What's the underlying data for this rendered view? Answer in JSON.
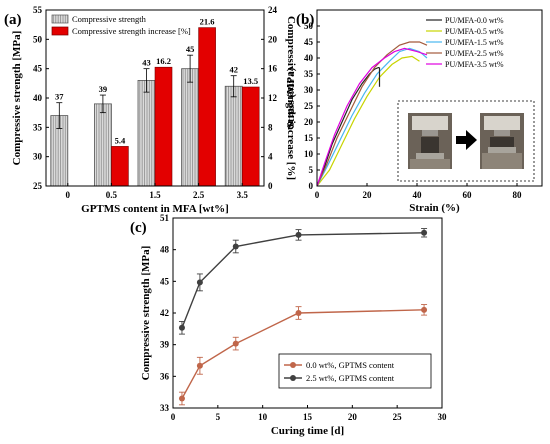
{
  "panels": {
    "a": "(a)",
    "b": "(b)",
    "c": "(c)"
  },
  "chart_data": [
    {
      "type": "bar",
      "panel": "a",
      "categories": [
        "0",
        "0.5",
        "1.5",
        "2.5",
        "3.5"
      ],
      "xlabel": "GPTMS content in MFA [wt%]",
      "ylabel": "Compressive strength [MPa]",
      "ylabel_right": "Compressive strength increase [%]",
      "ylim": [
        25,
        55
      ],
      "yticks": [
        25,
        30,
        35,
        40,
        45,
        50,
        55
      ],
      "ylim_right": [
        0,
        24
      ],
      "yticks_right": [
        0,
        4,
        8,
        12,
        16,
        20,
        24
      ],
      "legend_position": "top-left",
      "series": [
        {
          "name": "Compressive strength",
          "axis": "left",
          "color": "#c0c0c0",
          "values": [
            37,
            39,
            43,
            45,
            42
          ],
          "errors": [
            2.2,
            1.5,
            2.0,
            2.3,
            1.8
          ],
          "labels": [
            "37",
            "39",
            "43",
            "45",
            "42"
          ]
        },
        {
          "name": "Compressive strength increase [%]",
          "axis": "right",
          "color": "#e30000",
          "values": [
            0,
            5.4,
            16.2,
            21.6,
            13.5
          ],
          "labels": [
            "",
            "5.4",
            "16.2",
            "21.6",
            "13.5"
          ]
        }
      ]
    },
    {
      "type": "line",
      "panel": "b",
      "xlabel": "Strain (%)",
      "ylabel": "Stress (MPa)",
      "xlim": [
        0,
        90
      ],
      "xticks": [
        0,
        20,
        40,
        60,
        80
      ],
      "ylim": [
        0,
        55
      ],
      "yticks": [
        0,
        5,
        10,
        15,
        20,
        25,
        30,
        35,
        40,
        45,
        50
      ],
      "legend_position": "top-right",
      "inset": "compression test photos (before → after)",
      "series": [
        {
          "name": "PU/MFA-0.0 wt%",
          "color": "#222222",
          "x": [
            0,
            3,
            6,
            10,
            14,
            18,
            21,
            23,
            24.5,
            25
          ],
          "y": [
            0,
            6,
            13,
            20,
            27,
            32,
            35,
            36.5,
            37,
            37
          ]
        },
        {
          "name": "PU/MFA-0.5 wt%",
          "color": "#c8d400",
          "x": [
            0,
            5,
            10,
            15,
            20,
            25,
            30,
            34,
            38,
            41
          ],
          "y": [
            0,
            5,
            13,
            21,
            28,
            34,
            38,
            40,
            40.5,
            39
          ]
        },
        {
          "name": "PU/MFA-1.5 wt%",
          "color": "#4ab7f0",
          "x": [
            0,
            4,
            9,
            14,
            19,
            24,
            29,
            33,
            37,
            41,
            44
          ],
          "y": [
            0,
            6,
            14,
            22,
            29,
            35,
            39,
            42,
            43,
            42,
            40
          ]
        },
        {
          "name": "PU/MFA-2.5 wt%",
          "color": "#a35a3c",
          "x": [
            0,
            4,
            8,
            13,
            18,
            23,
            28,
            33,
            37,
            41,
            44
          ],
          "y": [
            0,
            7,
            15,
            23,
            31,
            37,
            41,
            44,
            45,
            45,
            44
          ]
        },
        {
          "name": "PU/MFA-3.5 wt%",
          "color": "#e000e0",
          "x": [
            0,
            3,
            7,
            12,
            17,
            22,
            27,
            31,
            35,
            40,
            44
          ],
          "y": [
            0,
            7,
            16,
            25,
            32,
            37,
            40,
            42,
            43,
            42,
            41
          ]
        }
      ]
    },
    {
      "type": "line",
      "panel": "c",
      "xlabel": "Curing time [d]",
      "ylabel": "Compressive strength [MPa]",
      "xlim": [
        0,
        30
      ],
      "xticks": [
        0,
        5,
        10,
        15,
        20,
        25,
        30
      ],
      "ylim": [
        33,
        51
      ],
      "yticks": [
        33,
        36,
        39,
        42,
        45,
        48,
        51
      ],
      "legend_position": "bottom-right",
      "series": [
        {
          "name": "0.0 wt%, GPTMS content",
          "color": "#c0664a",
          "x": [
            1,
            3,
            7,
            14,
            28
          ],
          "y": [
            33.9,
            37.0,
            39.1,
            42.0,
            42.3
          ],
          "errors": [
            0.6,
            0.8,
            0.6,
            0.6,
            0.5
          ]
        },
        {
          "name": "2.5 wt%, GPTMS content",
          "color": "#404040",
          "x": [
            1,
            3,
            7,
            14,
            28
          ],
          "y": [
            40.6,
            44.9,
            48.3,
            49.4,
            49.6
          ],
          "errors": [
            0.6,
            0.8,
            0.6,
            0.5,
            0.4
          ]
        }
      ]
    }
  ]
}
